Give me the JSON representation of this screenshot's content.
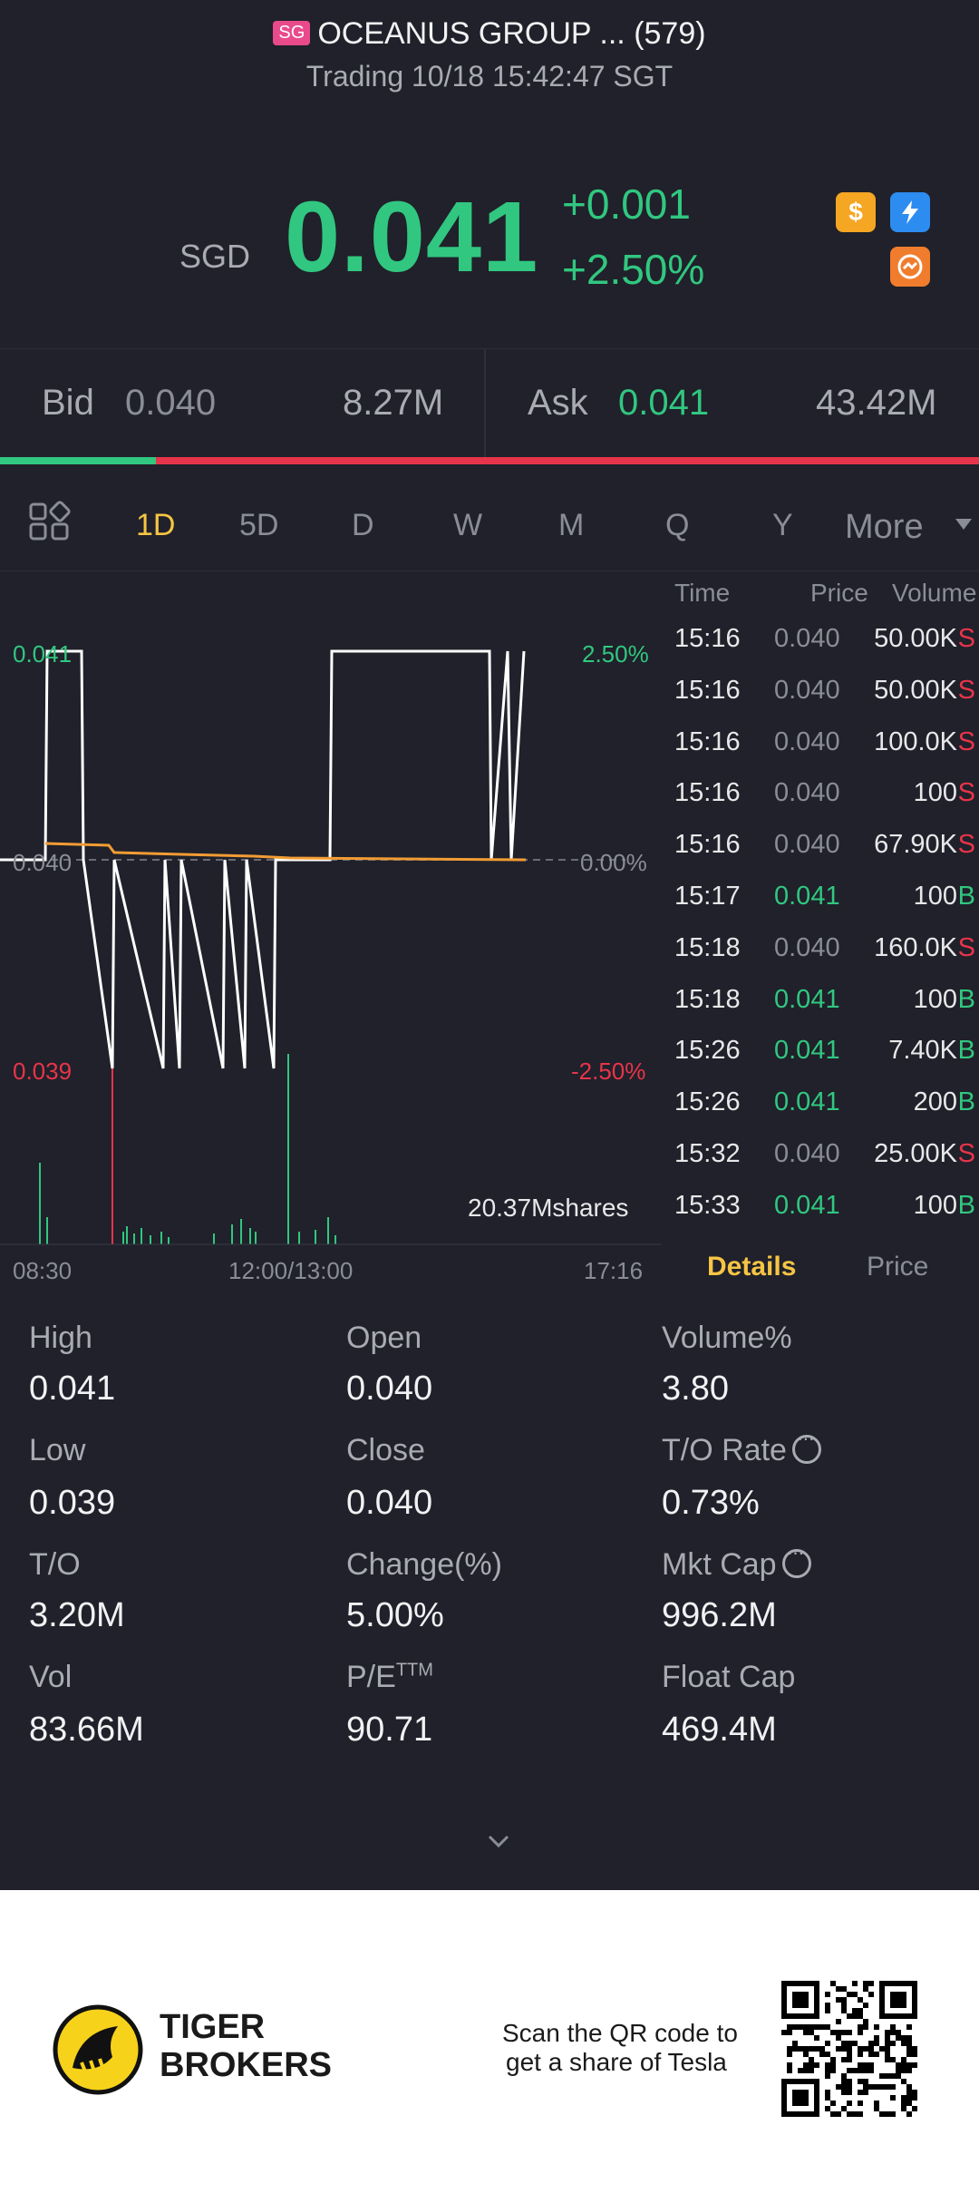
{
  "header": {
    "market_badge": "SG",
    "title": "OCEANUS GROUP ... (579)",
    "status": "Trading 10/18 15:42:47 SGT"
  },
  "quote": {
    "currency": "SGD",
    "price": "0.041",
    "change": "+0.001",
    "change_pct": "+2.50%",
    "icons": [
      "dollar-icon",
      "flash-icon",
      "swap-icon"
    ]
  },
  "bid_ask": {
    "bid_label": "Bid",
    "bid_price": "0.040",
    "bid_size": "8.27M",
    "ask_label": "Ask",
    "ask_price": "0.041",
    "ask_size": "43.42M"
  },
  "tabs": {
    "items": [
      "1D",
      "5D",
      "D",
      "W",
      "M",
      "Q",
      "Y"
    ],
    "more": "More",
    "active": "1D"
  },
  "chart": {
    "price_high": "0.041",
    "price_mid": "0.040",
    "price_low": "0.039",
    "pct_high": "2.50%",
    "pct_mid": "0.00%",
    "pct_low": "-2.50%",
    "volume": "20.37Mshares",
    "time_start": "08:30",
    "time_mid": "12:00/13:00",
    "time_end": "17:16"
  },
  "chart_data": {
    "type": "line",
    "title": "",
    "xlabel": "",
    "ylabel": "",
    "ylim": [
      0.039,
      0.041
    ],
    "x_ticks": [
      "08:30",
      "12:00/13:00",
      "17:16"
    ],
    "y_ticks": [
      "0.041",
      "0.040",
      "0.039"
    ],
    "pct_ticks": [
      "2.50%",
      "0.00%",
      "-2.50%"
    ],
    "series": [
      {
        "values": [
          0.04,
          0.041,
          0.041,
          0.04,
          0.039,
          0.04,
          0.039,
          0.04,
          0.039,
          0.04,
          0.039,
          0.04,
          0.039,
          0.04,
          0.039,
          0.04,
          0.04,
          0.041,
          0.041,
          0.04,
          0.041,
          0.04,
          0.041
        ]
      }
    ],
    "grid": false,
    "colors": {
      "price": "#ffffff",
      "average": "#f39c34",
      "volume_up": "#31c780",
      "volume_down": "#e8344b"
    }
  },
  "ticks": {
    "headers": {
      "time": "Time",
      "price": "Price",
      "volume": "Volume"
    },
    "rows": [
      {
        "time": "15:16",
        "price": "0.040",
        "volume": "50.00K",
        "side": "S"
      },
      {
        "time": "15:16",
        "price": "0.040",
        "volume": "50.00K",
        "side": "S"
      },
      {
        "time": "15:16",
        "price": "0.040",
        "volume": "100.0K",
        "side": "S"
      },
      {
        "time": "15:16",
        "price": "0.040",
        "volume": "100",
        "side": "S"
      },
      {
        "time": "15:16",
        "price": "0.040",
        "volume": "67.90K",
        "side": "S"
      },
      {
        "time": "15:17",
        "price": "0.041",
        "volume": "100",
        "side": "B"
      },
      {
        "time": "15:18",
        "price": "0.040",
        "volume": "160.0K",
        "side": "S"
      },
      {
        "time": "15:18",
        "price": "0.041",
        "volume": "100",
        "side": "B"
      },
      {
        "time": "15:26",
        "price": "0.041",
        "volume": "7.40K",
        "side": "B"
      },
      {
        "time": "15:26",
        "price": "0.041",
        "volume": "200",
        "side": "B"
      },
      {
        "time": "15:32",
        "price": "0.040",
        "volume": "25.00K",
        "side": "S"
      },
      {
        "time": "15:33",
        "price": "0.041",
        "volume": "100",
        "side": "B"
      }
    ],
    "tab_details": "Details",
    "tab_price": "Price"
  },
  "stats": [
    {
      "label": "High",
      "value": "0.041"
    },
    {
      "label": "Open",
      "value": "0.040"
    },
    {
      "label": "Volume%",
      "value": "3.80"
    },
    {
      "label": "Low",
      "value": "0.039"
    },
    {
      "label": "Close",
      "value": "0.040"
    },
    {
      "label": "T/O Rate",
      "value": "0.73%"
    },
    {
      "label": "T/O",
      "value": "3.20M"
    },
    {
      "label": "Change(%)",
      "value": "5.00%"
    },
    {
      "label": "Mkt Cap",
      "value": "996.2M"
    },
    {
      "label": "Vol",
      "value": "83.66M"
    },
    {
      "label": "P/E",
      "label_sup": "TTM",
      "value": "90.71"
    },
    {
      "label": "Float Cap",
      "value": "469.4M"
    }
  ],
  "footer": {
    "brand_line1": "TIGER",
    "brand_line2": "BROKERS",
    "scan_line1": "Scan the QR code to",
    "scan_line2": "get a share of Tesla"
  }
}
